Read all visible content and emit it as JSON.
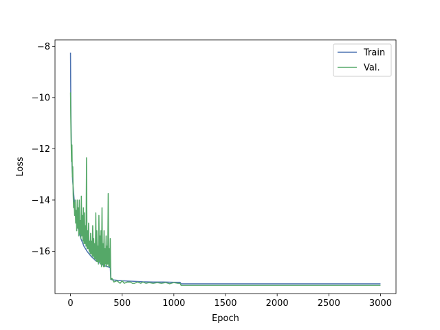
{
  "chart_data": {
    "type": "line",
    "title": "",
    "xlabel": "Epoch",
    "ylabel": "Loss",
    "xlim": [
      -150,
      3150
    ],
    "ylim": [
      -17.65,
      -7.75
    ],
    "xticks": [
      0,
      500,
      1000,
      1500,
      2000,
      2500,
      3000
    ],
    "yticks": [
      -16,
      -14,
      -12,
      -10,
      -8
    ],
    "grid": false,
    "legend": "top-right",
    "series": [
      {
        "name": "Train",
        "color": "#4c72b0",
        "x": [
          0,
          2,
          4,
          6,
          8,
          10,
          15,
          20,
          30,
          40,
          60,
          80,
          100,
          130,
          160,
          200,
          240,
          280,
          320,
          360,
          385,
          390,
          420,
          500,
          600,
          700,
          800,
          900,
          1000,
          1060,
          1070,
          1500,
          2000,
          2500,
          3000
        ],
        "values": [
          -8.25,
          -9.6,
          -10.7,
          -11.2,
          -11.7,
          -12.1,
          -12.7,
          -13.2,
          -13.7,
          -14.2,
          -14.8,
          -15.2,
          -15.5,
          -15.8,
          -16.0,
          -16.2,
          -16.35,
          -16.45,
          -16.55,
          -16.6,
          -16.65,
          -17.1,
          -17.12,
          -17.15,
          -17.17,
          -17.19,
          -17.2,
          -17.2,
          -17.21,
          -17.21,
          -17.27,
          -17.27,
          -17.27,
          -17.27,
          -17.27
        ]
      },
      {
        "name": "Val.",
        "color": "#55a868",
        "x": [
          0,
          3,
          6,
          10,
          14,
          18,
          22,
          26,
          30,
          35,
          40,
          45,
          50,
          55,
          60,
          65,
          70,
          75,
          80,
          85,
          90,
          95,
          100,
          105,
          110,
          115,
          120,
          125,
          130,
          135,
          140,
          145,
          150,
          155,
          160,
          165,
          170,
          175,
          180,
          185,
          190,
          195,
          200,
          205,
          210,
          215,
          220,
          225,
          230,
          235,
          240,
          245,
          250,
          255,
          260,
          265,
          270,
          275,
          280,
          285,
          290,
          295,
          300,
          305,
          310,
          315,
          320,
          325,
          330,
          335,
          340,
          345,
          350,
          355,
          360,
          365,
          370,
          375,
          380,
          385,
          390,
          400,
          420,
          450,
          480,
          500,
          520,
          550,
          580,
          600,
          620,
          650,
          680,
          700,
          730,
          760,
          800,
          840,
          880,
          920,
          960,
          1000,
          1040,
          1060,
          1070,
          1200,
          1500,
          2000,
          2500,
          3000
        ],
        "values": [
          -9.8,
          -10.9,
          -11.7,
          -12.5,
          -11.85,
          -13.1,
          -12.7,
          -13.8,
          -14.3,
          -14.1,
          -14.6,
          -14.0,
          -14.9,
          -14.4,
          -15.2,
          -14.0,
          -15.1,
          -14.3,
          -15.4,
          -14.0,
          -15.3,
          -14.8,
          -15.5,
          -13.85,
          -15.4,
          -14.6,
          -15.6,
          -14.3,
          -15.7,
          -14.5,
          -15.7,
          -15.0,
          -15.8,
          -12.35,
          -15.9,
          -15.2,
          -15.9,
          -14.9,
          -16.0,
          -15.6,
          -16.1,
          -15.3,
          -16.1,
          -15.6,
          -16.2,
          -15.0,
          -16.2,
          -15.5,
          -16.3,
          -15.7,
          -16.3,
          -14.5,
          -16.4,
          -15.2,
          -16.4,
          -15.8,
          -16.5,
          -14.6,
          -16.4,
          -15.4,
          -16.5,
          -15.2,
          -16.6,
          -14.3,
          -16.5,
          -15.7,
          -16.6,
          -15.2,
          -16.6,
          -15.9,
          -16.5,
          -15.4,
          -16.6,
          -15.8,
          -16.5,
          -13.75,
          -16.6,
          -15.9,
          -16.6,
          -15.5,
          -17.1,
          -17.05,
          -17.2,
          -17.15,
          -17.25,
          -17.15,
          -17.25,
          -17.2,
          -17.2,
          -17.25,
          -17.25,
          -17.2,
          -17.25,
          -17.2,
          -17.25,
          -17.22,
          -17.25,
          -17.22,
          -17.25,
          -17.22,
          -17.27,
          -17.22,
          -17.25,
          -17.25,
          -17.33,
          -17.33,
          -17.33,
          -17.33,
          -17.33,
          -17.33
        ]
      }
    ]
  }
}
